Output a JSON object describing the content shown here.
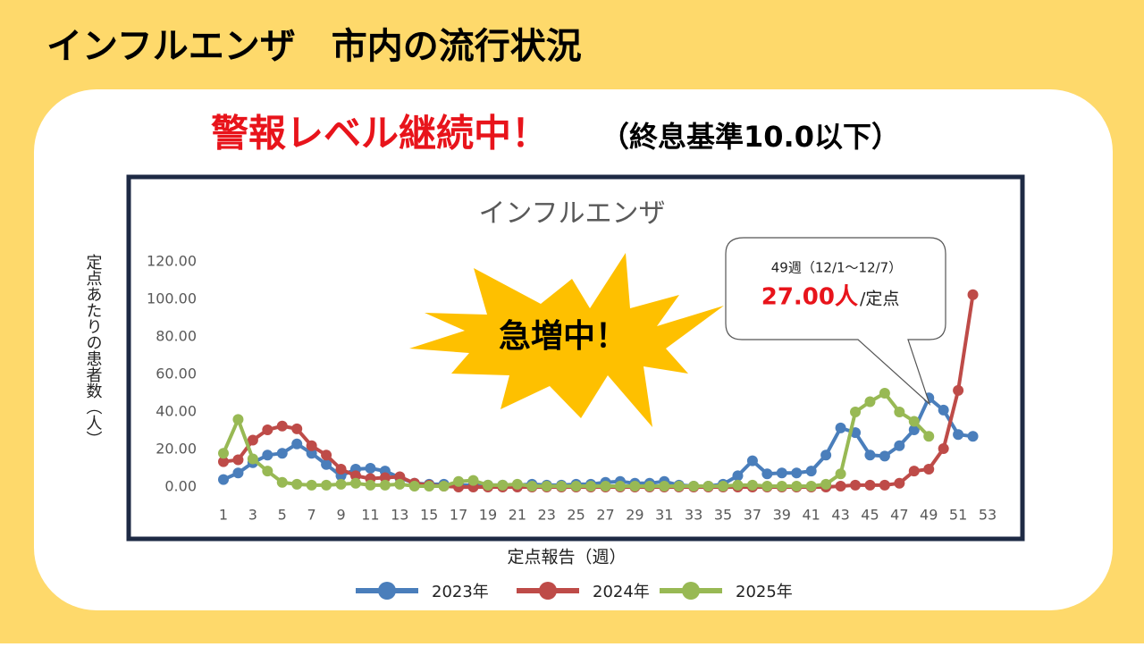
{
  "page_title": "インフルエンザ　市内の流行状況",
  "headline": "警報レベル継続中！",
  "headline_note": "（終息基準10.0以下）",
  "chart_data": {
    "type": "line",
    "title": "インフルエンザ",
    "y_label": "定点あたりの患者数（人）",
    "x_label": "定点報告（週）",
    "x": [
      1,
      2,
      3,
      4,
      5,
      6,
      7,
      8,
      9,
      10,
      11,
      12,
      13,
      14,
      15,
      16,
      17,
      18,
      19,
      20,
      21,
      22,
      23,
      24,
      25,
      26,
      27,
      28,
      29,
      30,
      31,
      32,
      33,
      34,
      35,
      36,
      37,
      38,
      39,
      40,
      41,
      42,
      43,
      44,
      45,
      46,
      47,
      48,
      49,
      50,
      51,
      52
    ],
    "xlim": [
      1,
      53
    ],
    "xticks": [
      1,
      3,
      5,
      7,
      9,
      11,
      13,
      15,
      17,
      19,
      21,
      23,
      25,
      27,
      29,
      31,
      33,
      35,
      37,
      39,
      41,
      43,
      45,
      47,
      49,
      51,
      53
    ],
    "ylim": [
      0,
      120
    ],
    "yticks": [
      {
        "value": 0,
        "label": "0.00"
      },
      {
        "value": 20,
        "label": "20.00"
      },
      {
        "value": 40,
        "label": "40.00"
      },
      {
        "value": 60,
        "label": "60.00"
      },
      {
        "value": 80,
        "label": "80.00"
      },
      {
        "value": 100,
        "label": "100.00"
      },
      {
        "value": 120,
        "label": "120.00"
      }
    ],
    "grid": false,
    "legend": "bottom",
    "series": [
      {
        "name": "2023年",
        "color": "#4a7ebb",
        "values": [
          4,
          7.5,
          13,
          17,
          18,
          23,
          18,
          12,
          6,
          9.5,
          10,
          8.5,
          5,
          2,
          1.5,
          1.5,
          1,
          1,
          1,
          1,
          1,
          1.5,
          1,
          1,
          1.5,
          1.5,
          2.5,
          3,
          2,
          2,
          3,
          1,
          0.5,
          0.5,
          1.5,
          6,
          14,
          7,
          7.5,
          7.5,
          8.5,
          17,
          31.5,
          29,
          17,
          16.5,
          22,
          30.5,
          47.5,
          41,
          28,
          27
        ]
      },
      {
        "name": "2024年",
        "color": "#be4b48",
        "values": [
          13.5,
          14.5,
          25,
          30.5,
          32.5,
          31,
          22,
          17,
          9.5,
          6,
          4.5,
          5,
          5.5,
          2,
          1,
          0.5,
          0,
          0,
          0,
          0,
          0,
          0,
          0,
          0,
          0,
          0,
          0,
          0,
          0,
          0,
          0,
          0,
          0,
          0,
          0,
          0,
          0,
          0,
          0,
          0,
          0,
          0,
          0.5,
          1,
          1,
          1,
          2,
          8.5,
          9.5,
          20.5,
          51.5,
          102.5
        ]
      },
      {
        "name": "2025年",
        "color": "#98b954",
        "values": [
          18,
          36,
          15,
          8.5,
          2.5,
          1.5,
          1,
          1,
          1.5,
          2,
          1,
          1,
          1.5,
          0.5,
          0.5,
          0.5,
          3,
          3.5,
          1,
          1,
          1.5,
          0.5,
          0.5,
          0.5,
          0.5,
          0.5,
          0.5,
          0.5,
          0.5,
          0.5,
          0.5,
          0.5,
          0.5,
          0.5,
          0.5,
          1,
          1,
          0.5,
          0.5,
          0.5,
          0.5,
          1.5,
          7,
          40,
          45.5,
          50,
          40,
          35,
          27,
          null,
          null,
          null
        ]
      }
    ],
    "burst_text": "急増中！",
    "callout_week": "49週（12/1～12/7）",
    "callout_value": "27.00人",
    "callout_unit": "/定点"
  }
}
